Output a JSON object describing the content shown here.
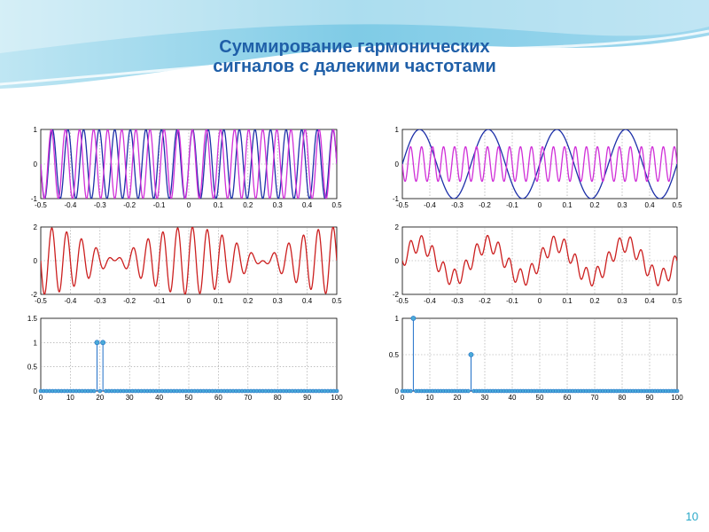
{
  "slide": {
    "title_line1": "Суммирование гармонических",
    "title_line2": "сигналов с далекими частотами",
    "page_number": "10"
  },
  "colors": {
    "title": "#1f5fa8",
    "harmonic_1": "#1c2fa8",
    "harmonic_2": "#d02fd8",
    "sum_signal": "#cc1f1f",
    "spectrum": "#1f6fc8",
    "spectrum_marker": "#4aaad8"
  },
  "chart_data": [
    {
      "id": "left-top",
      "type": "line",
      "x_range": [
        -0.5,
        0.5
      ],
      "xlim": [
        -0.5,
        0.5
      ],
      "ylim": [
        -1,
        1
      ],
      "x_ticks": [
        "-0.5",
        "-0.4",
        "-0.3",
        "-0.2",
        "-0.1",
        "0",
        "0.1",
        "0.2",
        "0.3",
        "0.4",
        "0.5"
      ],
      "y_ticks": [
        "-1",
        "0",
        "1"
      ],
      "grid": true,
      "series": [
        {
          "function": "sin",
          "frequency": 19,
          "amplitude": 1,
          "color": "#1c2fa8"
        },
        {
          "function": "sin",
          "frequency": 21,
          "amplitude": 1,
          "color": "#d02fd8"
        }
      ]
    },
    {
      "id": "right-top",
      "type": "line",
      "x_range": [
        -0.5,
        0.5
      ],
      "xlim": [
        -0.5,
        0.5
      ],
      "ylim": [
        -1,
        1
      ],
      "x_ticks": [
        "-0.5",
        "-0.4",
        "-0.3",
        "-0.2",
        "-0.1",
        "0",
        "0.1",
        "0.2",
        "0.3",
        "0.4",
        "0.5"
      ],
      "y_ticks": [
        "-1",
        "0",
        "1"
      ],
      "grid": true,
      "series": [
        {
          "function": "sin",
          "frequency": 4,
          "amplitude": 1,
          "color": "#1c2fa8"
        },
        {
          "function": "sin",
          "frequency": 25,
          "amplitude": 0.5,
          "color": "#d02fd8"
        }
      ]
    },
    {
      "id": "left-middle",
      "type": "line",
      "x_range": [
        -0.5,
        0.5
      ],
      "xlim": [
        -0.5,
        0.5
      ],
      "ylim": [
        -2,
        2
      ],
      "x_ticks": [
        "-0.5",
        "-0.4",
        "-0.3",
        "-0.2",
        "-0.1",
        "0",
        "0.1",
        "0.2",
        "0.3",
        "0.4",
        "0.5"
      ],
      "y_ticks": [
        "-2",
        "0",
        "2"
      ],
      "grid": true,
      "series": [
        {
          "function": "sum",
          "components": [
            {
              "function": "sin",
              "frequency": 19,
              "amplitude": 1
            },
            {
              "function": "sin",
              "frequency": 21,
              "amplitude": 1
            }
          ],
          "color": "#cc1f1f"
        }
      ]
    },
    {
      "id": "right-middle",
      "type": "line",
      "x_range": [
        -0.5,
        0.5
      ],
      "xlim": [
        -0.5,
        0.5
      ],
      "ylim": [
        -2,
        2
      ],
      "x_ticks": [
        "-0.5",
        "-0.4",
        "-0.3",
        "-0.2",
        "-0.1",
        "0",
        "0.1",
        "0.2",
        "0.3",
        "0.4",
        "0.5"
      ],
      "y_ticks": [
        "-2",
        "0",
        "2"
      ],
      "grid": true,
      "series": [
        {
          "function": "sum",
          "components": [
            {
              "function": "sin",
              "frequency": 4,
              "amplitude": 1
            },
            {
              "function": "sin",
              "frequency": 25,
              "amplitude": 0.5
            }
          ],
          "color": "#cc1f1f"
        }
      ]
    },
    {
      "id": "left-bottom",
      "type": "stem",
      "xlim": [
        0,
        100
      ],
      "ylim": [
        0,
        1.5
      ],
      "x_ticks": [
        "0",
        "10",
        "20",
        "30",
        "40",
        "50",
        "60",
        "70",
        "80",
        "90",
        "100"
      ],
      "y_ticks": [
        "0",
        "0.5",
        "1",
        "1.5"
      ],
      "grid": true,
      "x_domain": [
        0,
        100
      ],
      "peaks": [
        {
          "x": 19,
          "y": 1
        },
        {
          "x": 21,
          "y": 1
        }
      ],
      "baseline_value": 0,
      "color": "#1f6fc8"
    },
    {
      "id": "right-bottom",
      "type": "stem",
      "xlim": [
        0,
        100
      ],
      "ylim": [
        0,
        1
      ],
      "x_ticks": [
        "0",
        "10",
        "20",
        "30",
        "40",
        "50",
        "60",
        "70",
        "80",
        "90",
        "100"
      ],
      "y_ticks": [
        "0",
        "0.5",
        "1"
      ],
      "grid": true,
      "x_domain": [
        0,
        100
      ],
      "peaks": [
        {
          "x": 4,
          "y": 1
        },
        {
          "x": 25,
          "y": 0.5
        }
      ],
      "baseline_value": 0,
      "color": "#1f6fc8"
    }
  ]
}
